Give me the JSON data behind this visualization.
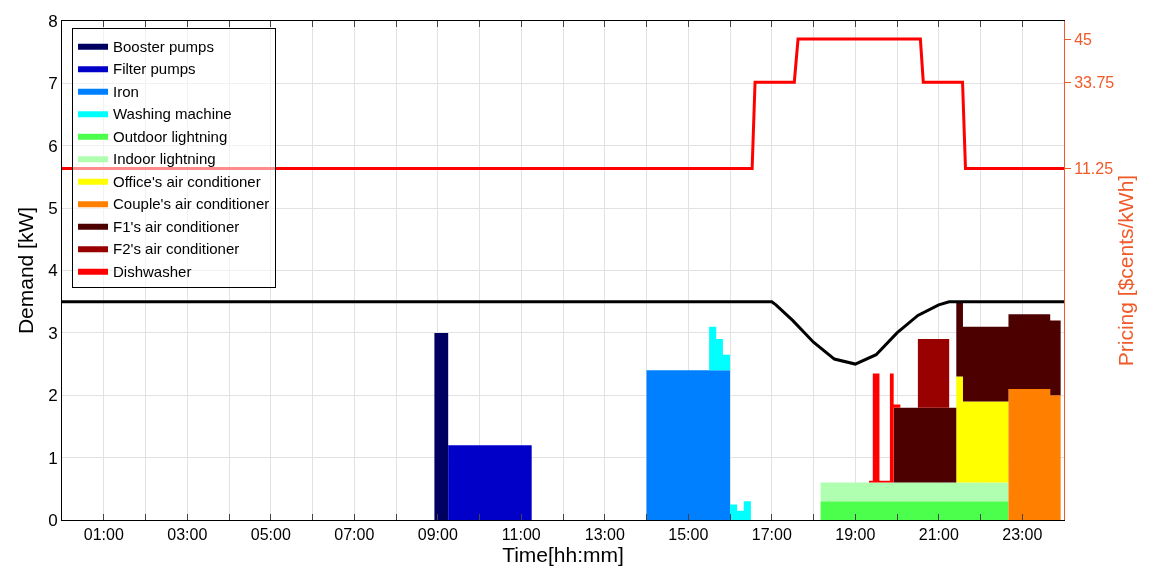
{
  "chart_data": {
    "type": "area",
    "stacked": true,
    "xlabel": "Time[hh:mm]",
    "ylabel": "Demand [kW]",
    "y2label": "Pricing [$cents/kWh]",
    "x": [
      8.92,
      9.25,
      9.25,
      11.25,
      14.0,
      15.5,
      15.5,
      15.67,
      15.67,
      15.83,
      15.83,
      16.0,
      16.0,
      16.17,
      16.17,
      16.33,
      16.33,
      16.5,
      18.17,
      19.33,
      19.33,
      19.42,
      19.42,
      19.58,
      19.58,
      19.83,
      19.83,
      19.92,
      19.92,
      20.08,
      20.08,
      20.5,
      20.5,
      21.25,
      21.25,
      21.42,
      21.42,
      21.58,
      21.58,
      22.67,
      22.67,
      23.67,
      23.67,
      23.92
    ],
    "series": [
      {
        "name": "Booster pumps",
        "color": "#000060",
        "values": [
          3.0,
          3.0,
          null,
          null,
          null,
          null,
          null,
          null,
          null,
          null,
          null,
          null,
          null,
          null,
          null,
          null,
          null,
          null,
          null,
          null,
          null,
          null,
          null,
          null,
          null,
          null,
          null,
          null,
          null,
          null,
          null,
          null,
          null,
          null,
          null,
          null,
          null,
          null,
          null,
          null,
          null,
          null,
          null,
          null
        ]
      },
      {
        "name": "Filter pumps",
        "color": "#0000c8",
        "values": [
          null,
          null,
          1.2,
          1.2,
          null,
          null,
          null,
          null,
          null,
          null,
          null,
          null,
          null,
          null,
          null,
          null,
          null,
          null,
          null,
          null,
          null,
          null,
          null,
          null,
          null,
          null,
          null,
          null,
          null,
          null,
          null,
          null,
          null,
          null,
          null,
          null,
          null,
          null,
          null,
          null,
          null,
          null,
          null,
          null
        ]
      },
      {
        "name": "Iron",
        "color": "#0080ff",
        "values": [
          null,
          null,
          null,
          null,
          2.4,
          2.4,
          2.4,
          2.4,
          2.4,
          2.4,
          2.4,
          2.4,
          null,
          null,
          null,
          null,
          null,
          null,
          null,
          null,
          null,
          null,
          null,
          null,
          null,
          null,
          null,
          null,
          null,
          null,
          null,
          null,
          null,
          null,
          null,
          null,
          null,
          null,
          null,
          null,
          null,
          null,
          null,
          null
        ]
      },
      {
        "name": "Washing machine",
        "color": "#00ffff",
        "values": [
          null,
          null,
          null,
          null,
          null,
          null,
          0.7,
          0.7,
          0.5,
          0.5,
          0.25,
          0.25,
          0.25,
          0.25,
          0.15,
          0.15,
          0.3,
          0.3,
          null,
          null,
          null,
          null,
          null,
          null,
          null,
          null,
          null,
          null,
          null,
          null,
          null,
          null,
          null,
          null,
          null,
          null,
          null,
          null,
          null,
          null,
          null,
          null,
          null,
          null
        ]
      },
      {
        "name": "Outdoor lightning",
        "color": "#4cff4c",
        "values": [
          null,
          null,
          null,
          null,
          null,
          null,
          null,
          null,
          null,
          null,
          null,
          null,
          null,
          null,
          null,
          null,
          null,
          null,
          0.3,
          0.3,
          0.3,
          0.3,
          0.3,
          0.3,
          0.3,
          0.3,
          0.3,
          0.3,
          0.3,
          0.3,
          0.3,
          0.3,
          0.3,
          0.3,
          0.3,
          0.3,
          0.3,
          0.3,
          0.3,
          0.3,
          null,
          null,
          null,
          null
        ]
      },
      {
        "name": "Indoor lightning",
        "color": "#b0ffb0",
        "values": [
          null,
          null,
          null,
          null,
          null,
          null,
          null,
          null,
          null,
          null,
          null,
          null,
          null,
          null,
          null,
          null,
          null,
          null,
          0.3,
          0.3,
          0.3,
          0.3,
          0.3,
          0.3,
          0.3,
          0.3,
          0.3,
          0.3,
          0.3,
          0.3,
          0.3,
          0.3,
          0.3,
          0.3,
          0.3,
          0.3,
          0.3,
          0.3,
          0.3,
          0.3,
          null,
          null,
          null,
          null
        ]
      },
      {
        "name": "Office's air conditioner",
        "color": "#ffff00",
        "values": [
          null,
          null,
          null,
          null,
          null,
          null,
          null,
          null,
          null,
          null,
          null,
          null,
          null,
          null,
          null,
          null,
          null,
          null,
          null,
          null,
          null,
          null,
          null,
          null,
          null,
          null,
          null,
          null,
          null,
          null,
          null,
          null,
          null,
          null,
          null,
          null,
          1.7,
          1.7,
          1.3,
          1.3,
          null,
          null,
          null,
          null
        ]
      },
      {
        "name": "Couple's air conditioner",
        "color": "#ff8000",
        "values": [
          null,
          null,
          null,
          null,
          null,
          null,
          null,
          null,
          null,
          null,
          null,
          null,
          null,
          null,
          null,
          null,
          null,
          null,
          null,
          null,
          null,
          null,
          null,
          null,
          null,
          null,
          null,
          null,
          null,
          null,
          null,
          null,
          null,
          null,
          null,
          null,
          null,
          null,
          null,
          null,
          2.1,
          2.1,
          2.0,
          2.0
        ]
      },
      {
        "name": "F1's air conditioner",
        "color": "#4d0000",
        "values": [
          null,
          null,
          null,
          null,
          null,
          null,
          null,
          null,
          null,
          null,
          null,
          null,
          null,
          null,
          null,
          null,
          null,
          null,
          null,
          null,
          null,
          null,
          null,
          null,
          null,
          null,
          null,
          null,
          1.2,
          1.2,
          1.2,
          1.2,
          1.2,
          1.2,
          1.2,
          1.2,
          1.2,
          1.2,
          1.2,
          1.2,
          1.2,
          1.2,
          1.2,
          1.2
        ]
      },
      {
        "name": "F2's air conditioner",
        "color": "#990000",
        "values": [
          null,
          null,
          null,
          null,
          null,
          null,
          null,
          null,
          null,
          null,
          null,
          null,
          null,
          null,
          null,
          null,
          null,
          null,
          null,
          null,
          null,
          null,
          null,
          null,
          null,
          null,
          null,
          null,
          null,
          null,
          null,
          null,
          1.1,
          1.1,
          null,
          null,
          null,
          null,
          null,
          null,
          null,
          null,
          null,
          null
        ]
      },
      {
        "name": "Dishwasher",
        "color": "#ff0000",
        "values": [
          null,
          null,
          null,
          null,
          null,
          null,
          null,
          null,
          null,
          null,
          null,
          null,
          null,
          null,
          null,
          null,
          null,
          null,
          null,
          null,
          0.03,
          0.03,
          1.75,
          1.75,
          0.03,
          0.03,
          1.75,
          1.75,
          0.05,
          0.05,
          null,
          null,
          null,
          null,
          null,
          null,
          null,
          null,
          null,
          null,
          null,
          null,
          null,
          null
        ]
      },
      {
        "type": "line",
        "color": "#000000",
        "x": [
          0,
          17.0,
          17.1,
          17.5,
          18.0,
          18.5,
          19.0,
          19.5,
          20.0,
          20.5,
          21.0,
          21.25,
          24
        ],
        "values": [
          3.5,
          3.5,
          3.45,
          3.2,
          2.85,
          2.58,
          2.5,
          2.65,
          3.0,
          3.28,
          3.45,
          3.5,
          3.5
        ]
      },
      {
        "type": "line",
        "color": "#ff0000",
        "axis": "y2",
        "x": [
          0,
          16.53,
          16.6,
          17.54,
          17.63,
          20.56,
          20.63,
          21.57,
          21.64,
          24
        ],
        "values": [
          11.25,
          11.25,
          33.75,
          33.75,
          45,
          45,
          33.75,
          33.75,
          11.25,
          11.25
        ]
      }
    ],
    "xlim": [
      0,
      24
    ],
    "xticks": [
      {
        "value": 1,
        "label": "01:00"
      },
      {
        "value": 2,
        "label": null
      },
      {
        "value": 3,
        "label": "03:00"
      },
      {
        "value": 4,
        "label": null
      },
      {
        "value": 5,
        "label": "05:00"
      },
      {
        "value": 6,
        "label": null
      },
      {
        "value": 7,
        "label": "07:00"
      },
      {
        "value": 8,
        "label": null
      },
      {
        "value": 9,
        "label": "09:00"
      },
      {
        "value": 10,
        "label": null
      },
      {
        "value": 11,
        "label": "11:00"
      },
      {
        "value": 12,
        "label": null
      },
      {
        "value": 13,
        "label": "13:00"
      },
      {
        "value": 14,
        "label": null
      },
      {
        "value": 15,
        "label": "15:00"
      },
      {
        "value": 16,
        "label": null
      },
      {
        "value": 17,
        "label": "17:00"
      },
      {
        "value": 18,
        "label": null
      },
      {
        "value": 19,
        "label": "19:00"
      },
      {
        "value": 20,
        "label": null
      },
      {
        "value": 21,
        "label": "21:00"
      },
      {
        "value": 22,
        "label": null
      },
      {
        "value": 23,
        "label": "23:00"
      }
    ],
    "ylim": [
      0,
      8
    ],
    "yticks": [
      0,
      1,
      2,
      3,
      4,
      5,
      6,
      7,
      8
    ],
    "y2lim": [
      -80.4,
      49.7
    ],
    "y2ticks": [
      11.25,
      33.75,
      45
    ],
    "grid": true,
    "legend": "top left"
  }
}
